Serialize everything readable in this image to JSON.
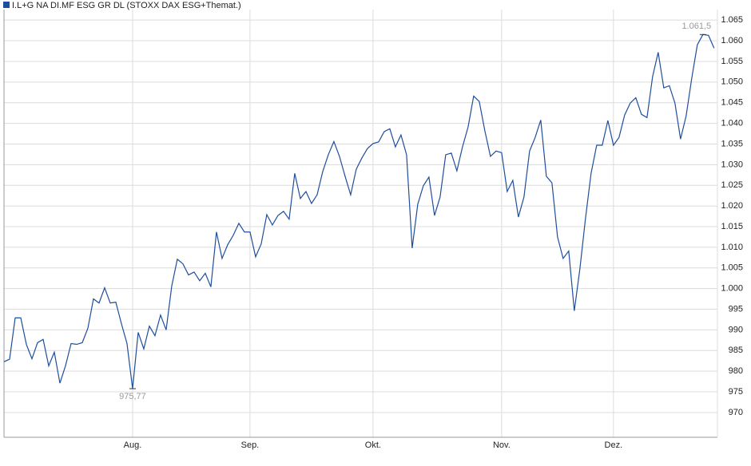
{
  "chart_data": {
    "type": "line",
    "series": [
      {
        "name": "I.L+G NA DI.MF ESG GR DL (STOXX DAX ESG+Themat.)",
        "color": "#1f4e9c",
        "values": [
          982.3,
          982.9,
          992.9,
          992.9,
          986.5,
          983,
          986.9,
          987.7,
          981.3,
          984.6,
          977.1,
          981.3,
          986.7,
          986.5,
          986.9,
          990.4,
          997.5,
          996.5,
          1000.2,
          996.5,
          996.7,
          991.5,
          986.7,
          975.77,
          989.4,
          985.4,
          990.9,
          988.6,
          993.6,
          990,
          1000.6,
          1007.1,
          1006,
          1003.3,
          1004,
          1001.9,
          1003.7,
          1000.4,
          1013.7,
          1007.3,
          1010.6,
          1012.9,
          1015.8,
          1013.7,
          1013.7,
          1007.7,
          1010.8,
          1017.9,
          1015.4,
          1017.7,
          1018.7,
          1016.8,
          1027.9,
          1021.8,
          1023.5,
          1020.6,
          1022.7,
          1028.3,
          1032.4,
          1035.6,
          1032,
          1027.2,
          1022.7,
          1028.9,
          1031.6,
          1033.9,
          1035.1,
          1035.5,
          1038,
          1038.7,
          1034.3,
          1037.2,
          1032.4,
          1009.8,
          1020.4,
          1024.9,
          1027,
          1017.7,
          1022.2,
          1032.4,
          1032.8,
          1028.5,
          1034.3,
          1039.1,
          1046.6,
          1045.3,
          1038.2,
          1032,
          1033.3,
          1032.9,
          1023.5,
          1026.2,
          1017.3,
          1022.2,
          1033.3,
          1036.6,
          1040.8,
          1027.2,
          1025.6,
          1012.5,
          1007.3,
          1009.1,
          994.6,
          1004.8,
          1017,
          1027.9,
          1034.7,
          1034.7,
          1040.7,
          1034.7,
          1036.6,
          1042,
          1044.9,
          1046.2,
          1042.2,
          1041.4,
          1051.3,
          1057.2,
          1048.6,
          1049.1,
          1044.9,
          1036.2,
          1041.8,
          1050.9,
          1059,
          1061.5,
          1061.3,
          1058.2
        ]
      }
    ],
    "xlim": [
      0,
      127.6
    ],
    "xticks": [
      {
        "value": 23,
        "label": "Aug."
      },
      {
        "value": 44,
        "label": "Sep."
      },
      {
        "value": 66,
        "label": "Okt."
      },
      {
        "value": 89,
        "label": "Nov."
      },
      {
        "value": 109,
        "label": "Dez."
      }
    ],
    "ylim": [
      964,
      1066
    ],
    "yticks": [
      970,
      975,
      980,
      985,
      990,
      995,
      {
        "value": 1000,
        "label": "1.000"
      },
      {
        "value": 1005,
        "label": "1.005"
      },
      {
        "value": 1010,
        "label": "1.010"
      },
      {
        "value": 1015,
        "label": "1.015"
      },
      {
        "value": 1020,
        "label": "1.020"
      },
      {
        "value": 1025,
        "label": "1.025"
      },
      {
        "value": 1030,
        "label": "1.030"
      },
      {
        "value": 1035,
        "label": "1.035"
      },
      {
        "value": 1040,
        "label": "1.040"
      },
      {
        "value": 1045,
        "label": "1.045"
      },
      {
        "value": 1050,
        "label": "1.050"
      },
      {
        "value": 1055,
        "label": "1.055"
      },
      {
        "value": 1060,
        "label": "1.060"
      },
      {
        "value": 1065,
        "label": "1.065"
      }
    ],
    "annotations": [
      {
        "x": 23,
        "value": 975.77,
        "label": "975,77"
      },
      {
        "x": 125,
        "value": 1061.5,
        "label": "1.061,5"
      }
    ],
    "grid": true
  }
}
